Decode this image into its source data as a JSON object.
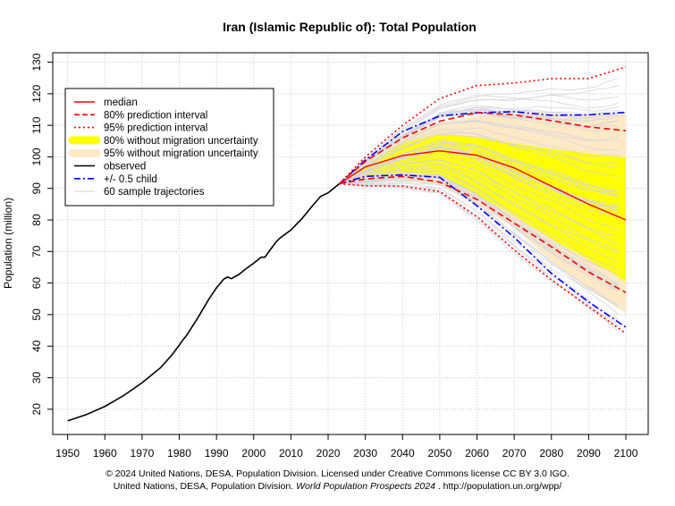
{
  "chart_data": {
    "type": "line",
    "title": "Iran (Islamic Republic of): Total Population",
    "xlabel": "",
    "ylabel": "Population (million)",
    "xlim": [
      1946,
      2106
    ],
    "ylim": [
      12,
      133
    ],
    "xticks": [
      1950,
      1960,
      1970,
      1980,
      1990,
      2000,
      2010,
      2020,
      2030,
      2040,
      2050,
      2060,
      2070,
      2080,
      2090,
      2100
    ],
    "yticks": [
      20,
      30,
      40,
      50,
      60,
      70,
      80,
      90,
      100,
      110,
      120,
      130
    ],
    "grid": true,
    "legend_position": "top-left",
    "legend": [
      {
        "label": "median",
        "color": "#ff0000",
        "style": "solid"
      },
      {
        "label": "80% prediction interval",
        "color": "#ff0000",
        "style": "dashed"
      },
      {
        "label": "95% prediction interval",
        "color": "#ff0000",
        "style": "dotted"
      },
      {
        "label": "80% without migration uncertainty",
        "color": "#ffff00",
        "style": "band"
      },
      {
        "label": "95% without migration uncertainty",
        "color": "#fde9c6",
        "style": "band"
      },
      {
        "label": "observed",
        "color": "#000000",
        "style": "solid"
      },
      {
        "label": "+/- 0.5 child",
        "color": "#0000ff",
        "style": "dashdot"
      },
      {
        "label": "60 sample trajectories",
        "color": "#d3d3d3",
        "style": "thin"
      }
    ],
    "observed": {
      "x": [
        1950,
        1955,
        1960,
        1965,
        1970,
        1975,
        1978,
        1980,
        1981,
        1982,
        1985,
        1988,
        1990,
        1992,
        1993,
        1994,
        1996,
        1998,
        2000,
        2002,
        2003,
        2004,
        2006,
        2007,
        2010,
        2013,
        2016,
        2018,
        2020,
        2022,
        2023
      ],
      "y": [
        16.3,
        18.3,
        20.9,
        24.3,
        28.4,
        33.2,
        37.2,
        40.3,
        42.0,
        43.4,
        49.0,
        55.0,
        58.5,
        61.3,
        61.9,
        61.4,
        62.7,
        64.6,
        66.3,
        68.2,
        68.2,
        69.8,
        73.0,
        74.2,
        76.8,
        80.5,
        84.8,
        87.5,
        88.6,
        90.5,
        91.5
      ]
    },
    "projections": {
      "x": [
        2023,
        2030,
        2040,
        2050,
        2060,
        2070,
        2080,
        2090,
        2100
      ],
      "median": [
        91.5,
        96.8,
        100.4,
        101.9,
        100.5,
        96.5,
        90.7,
        85.0,
        80.0
      ],
      "pi80_upper": [
        91.5,
        98.6,
        106.0,
        111.3,
        114.0,
        113.3,
        111.5,
        109.5,
        108.3
      ],
      "pi80_lower": [
        91.5,
        93.0,
        93.8,
        92.0,
        86.5,
        79.0,
        71.5,
        63.5,
        57.0
      ],
      "pi95_upper": [
        91.5,
        100.0,
        110.0,
        118.5,
        122.6,
        123.4,
        124.8,
        124.8,
        128.5
      ],
      "pi95_lower": [
        91.5,
        90.8,
        90.7,
        89.0,
        81.0,
        70.5,
        61.0,
        52.5,
        44.0
      ],
      "band80_upper": [
        91.5,
        97.5,
        104.5,
        107.2,
        106.3,
        104.3,
        102.5,
        101.0,
        99.8
      ],
      "band80_lower": [
        91.5,
        93.5,
        95.0,
        94.3,
        88.0,
        81.5,
        74.0,
        67.5,
        60.5
      ],
      "band95_upper": [
        91.5,
        98.5,
        106.8,
        110.8,
        112.8,
        113.6,
        113.4,
        113.1,
        113.5
      ],
      "band95_lower": [
        91.5,
        91.8,
        92.5,
        91.0,
        85.0,
        77.5,
        67.0,
        58.0,
        50.5
      ],
      "child_upper": [
        91.5,
        99.0,
        108.0,
        113.0,
        114.0,
        114.3,
        113.2,
        113.3,
        114.1
      ],
      "child_lower": [
        91.5,
        93.8,
        94.3,
        93.5,
        84.5,
        74.5,
        63.0,
        54.0,
        46.0
      ]
    },
    "trajectories_count": 60
  },
  "footer": {
    "line1": "© 2024 United Nations, DESA, Population Division. Licensed under Creative Commons license CC BY 3.0 IGO.",
    "line2_prefix": "United Nations, DESA, Population Division.",
    "line2_italic": "World Population Prospects 2024",
    "line2_suffix": ". http://population.un.org/wpp/"
  }
}
